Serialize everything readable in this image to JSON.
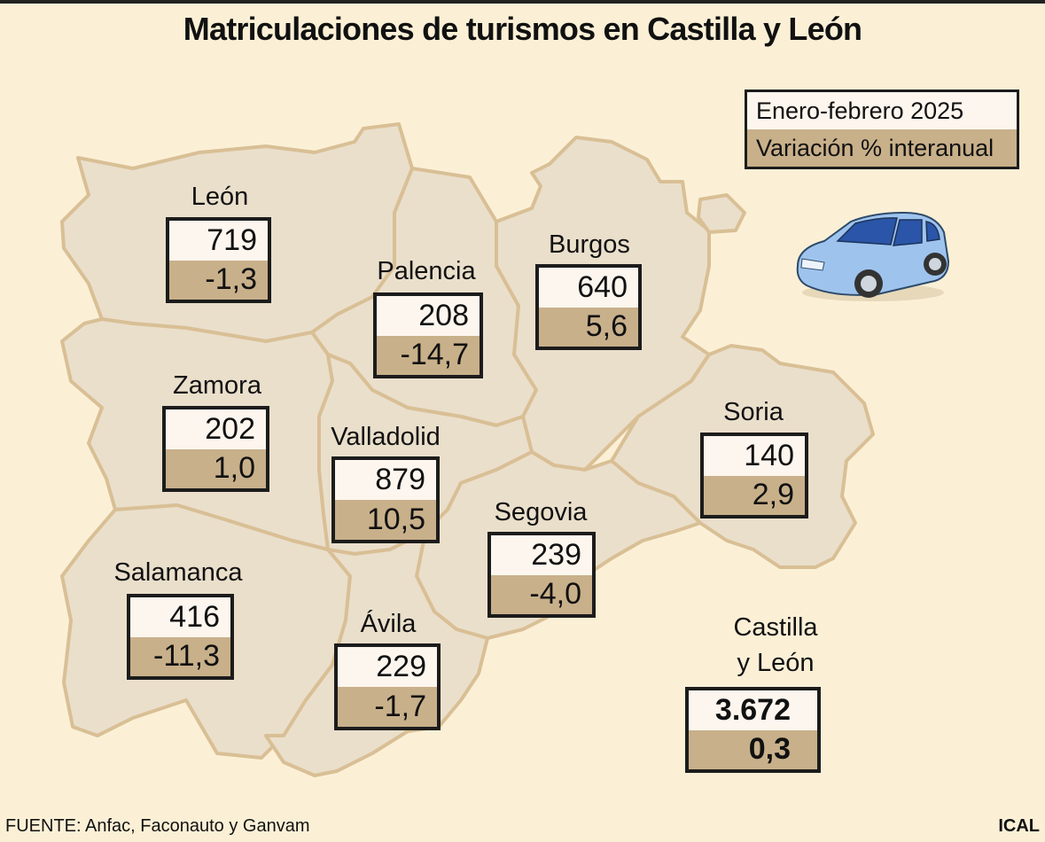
{
  "title": "Matriculaciones de turismos en Castilla y León",
  "legend": {
    "period_label": "Enero-febrero 2025",
    "variation_label": "Variación % interanual"
  },
  "provinces": [
    {
      "name": "León",
      "value": "719",
      "variation": "-1,3"
    },
    {
      "name": "Palencia",
      "value": "208",
      "variation": "-14,7"
    },
    {
      "name": "Burgos",
      "value": "640",
      "variation": "5,6"
    },
    {
      "name": "Zamora",
      "value": "202",
      "variation": "1,0"
    },
    {
      "name": "Valladolid",
      "value": "879",
      "variation": "10,5"
    },
    {
      "name": "Soria",
      "value": "140",
      "variation": "2,9"
    },
    {
      "name": "Segovia",
      "value": "239",
      "variation": "-4,0"
    },
    {
      "name": "Salamanca",
      "value": "416",
      "variation": "-11,3"
    },
    {
      "name": "Ávila",
      "value": "229",
      "variation": "-1,7"
    }
  ],
  "total": {
    "name_line1": "Castilla",
    "name_line2": "y León",
    "value": "3.672",
    "variation": "0,3"
  },
  "source": "FUENTE: Anfac, Faconauto y Ganvam",
  "credit": "ICAL",
  "colors": {
    "background": "#fbf0d6",
    "region_fill": "#eadfcb",
    "region_border": "#d9bf95",
    "value_row": "#fdf6ee",
    "variation_row": "#c8b08a",
    "car": "#9ec4ee"
  }
}
